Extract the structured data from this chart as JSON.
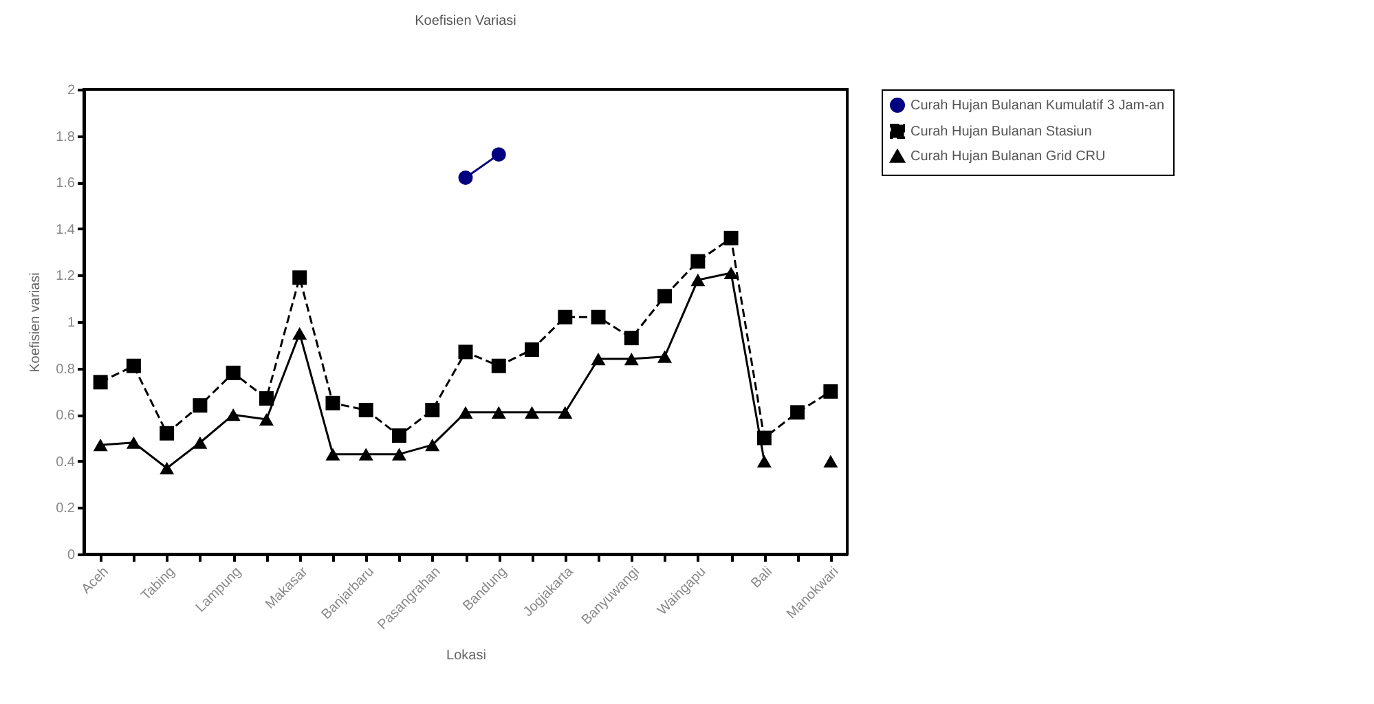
{
  "chart_data": {
    "type": "line",
    "title": "Koefisien Variasi",
    "xlabel": "Lokasi",
    "ylabel": "Koefisien variasi",
    "categories": [
      "Aceh",
      null,
      "Tabing",
      null,
      "Lampung",
      null,
      "Makasar",
      null,
      "Banjarbaru",
      null,
      "Pasangrahan",
      null,
      "Bandung",
      null,
      "Jogjakarta",
      null,
      "Banyuwangi",
      null,
      "Waingapu",
      null,
      "Bali",
      null,
      "Manokwari"
    ],
    "series": [
      {
        "name": "Curah Hujan Bulanan Kumulatif 3 Jam-an",
        "color": "#000080",
        "marker": "circle",
        "line_style": "solid",
        "values": [
          null,
          null,
          null,
          null,
          null,
          null,
          null,
          null,
          null,
          null,
          null,
          1.62,
          1.72,
          null,
          null,
          null,
          null,
          null,
          null,
          null,
          null,
          null,
          null
        ]
      },
      {
        "name": "Curah Hujan Bulanan Stasiun",
        "color": "#000000",
        "marker": "square",
        "line_style": "dashed",
        "values": [
          0.74,
          0.81,
          0.52,
          0.64,
          0.78,
          0.67,
          1.19,
          0.65,
          0.62,
          0.51,
          0.62,
          0.87,
          0.81,
          0.88,
          1.02,
          1.02,
          0.93,
          1.11,
          1.26,
          1.36,
          0.5,
          0.61,
          0.7
        ]
      },
      {
        "name": "Curah Hujan Bulanan Grid CRU",
        "color": "#000000",
        "marker": "triangle",
        "line_style": "solid",
        "values": [
          0.47,
          0.48,
          0.37,
          0.48,
          0.6,
          0.58,
          0.95,
          0.43,
          0.43,
          0.43,
          0.47,
          0.61,
          0.61,
          0.61,
          0.61,
          0.84,
          0.84,
          0.85,
          1.18,
          1.21,
          0.4,
          null,
          0.4
        ]
      }
    ],
    "ylim": [
      0,
      2
    ],
    "yticks": [
      0,
      0.2,
      0.4,
      0.6,
      0.8,
      1,
      1.2,
      1.4,
      1.6,
      1.8,
      2
    ],
    "grid": false,
    "legend": "right"
  }
}
